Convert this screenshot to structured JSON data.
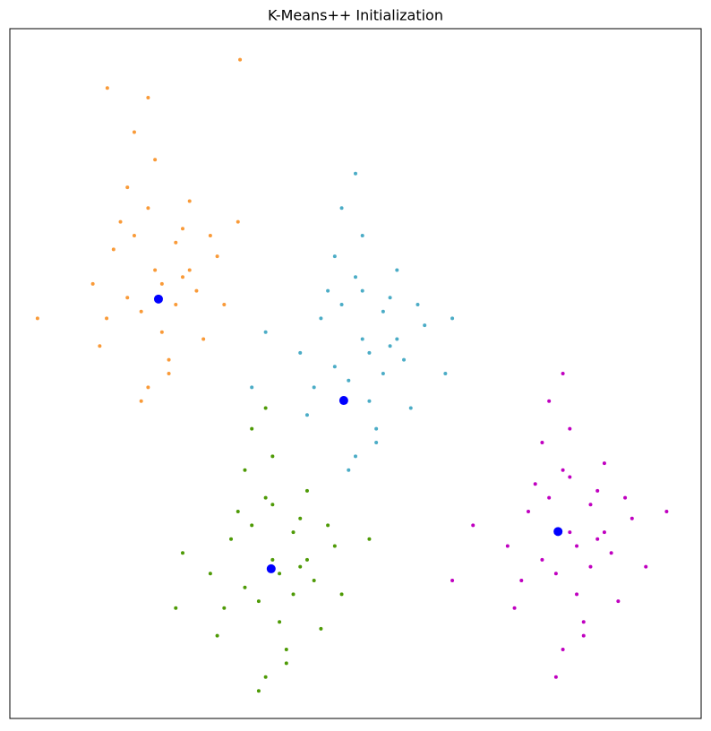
{
  "chart_data": {
    "type": "scatter",
    "title": "K-Means++ Initialization",
    "xlim": [
      0,
      100
    ],
    "ylim": [
      0,
      100
    ],
    "series": [
      {
        "color": "#f99a38",
        "marker_size": 2,
        "x": [
          21,
          18,
          24,
          15,
          27,
          20,
          22,
          12,
          30,
          19,
          25,
          17,
          23,
          26,
          14,
          21,
          28,
          16,
          20,
          24,
          4,
          31,
          18,
          22,
          13,
          26,
          20,
          17,
          23,
          29,
          14.1,
          33,
          19,
          25,
          33.3
        ],
        "y": [
          65,
          70,
          60,
          68,
          62,
          74,
          56,
          63,
          67,
          59,
          71,
          77,
          52,
          65,
          58,
          81,
          55,
          72,
          48,
          69,
          58,
          60,
          85,
          63,
          54,
          75,
          90,
          61,
          50,
          70,
          91.4,
          72,
          46,
          64,
          95.5
        ]
      },
      {
        "color": "#4bacc6",
        "marker_size": 2,
        "x": [
          51,
          48,
          54,
          45,
          57,
          50,
          52,
          42,
          60,
          49,
          55,
          47,
          53,
          56,
          44,
          51,
          58,
          46,
          50,
          54,
          37,
          63,
          48,
          52,
          43,
          56,
          50,
          47,
          53,
          59,
          35,
          64,
          49,
          55,
          51
        ],
        "y": [
          55,
          60,
          50,
          58,
          52,
          64,
          46,
          53,
          57,
          49,
          61,
          67,
          42,
          55,
          48,
          70,
          45,
          62,
          38,
          59,
          56,
          50,
          74,
          53,
          44,
          65,
          79,
          51,
          40,
          60,
          48,
          58,
          36,
          54,
          62
        ]
      },
      {
        "color": "#4e9a06",
        "marker_size": 2,
        "x": [
          38,
          35,
          41,
          32,
          44,
          37,
          39,
          29,
          47,
          36,
          42,
          34,
          40,
          43,
          31,
          38,
          45,
          33,
          37,
          41,
          25,
          48,
          35,
          39,
          30,
          43,
          37,
          34,
          40,
          46,
          24,
          52,
          36,
          42,
          38
        ],
        "y": [
          23,
          28,
          18,
          26,
          20,
          32,
          14,
          21,
          25,
          17,
          29,
          36,
          10,
          23,
          16,
          38,
          13,
          30,
          6,
          27,
          24,
          18,
          42,
          21,
          12,
          33,
          45,
          19,
          8,
          28,
          16,
          26,
          4,
          22,
          31
        ]
      },
      {
        "color": "#c000c0",
        "marker_size": 2,
        "x": [
          81,
          78,
          84,
          75,
          87,
          80,
          82,
          72,
          90,
          79,
          85,
          77,
          83,
          86,
          74,
          81,
          88,
          76,
          80,
          84,
          67,
          92,
          78,
          82,
          73,
          86,
          80,
          77,
          83,
          89,
          64,
          95,
          79,
          85,
          81
        ],
        "y": [
          27,
          32,
          22,
          30,
          24,
          36,
          18,
          25,
          29,
          21,
          33,
          40,
          14,
          27,
          20,
          42,
          17,
          34,
          10,
          31,
          28,
          22,
          46,
          25,
          16,
          37,
          50,
          23,
          12,
          32,
          20,
          30,
          6,
          26,
          35
        ]
      },
      {
        "color": "#0000ff",
        "marker_size": 5,
        "x": [
          21.5,
          48.3,
          37.8,
          79.3
        ],
        "y": [
          60.8,
          46.1,
          21.7,
          27.1
        ]
      }
    ]
  }
}
